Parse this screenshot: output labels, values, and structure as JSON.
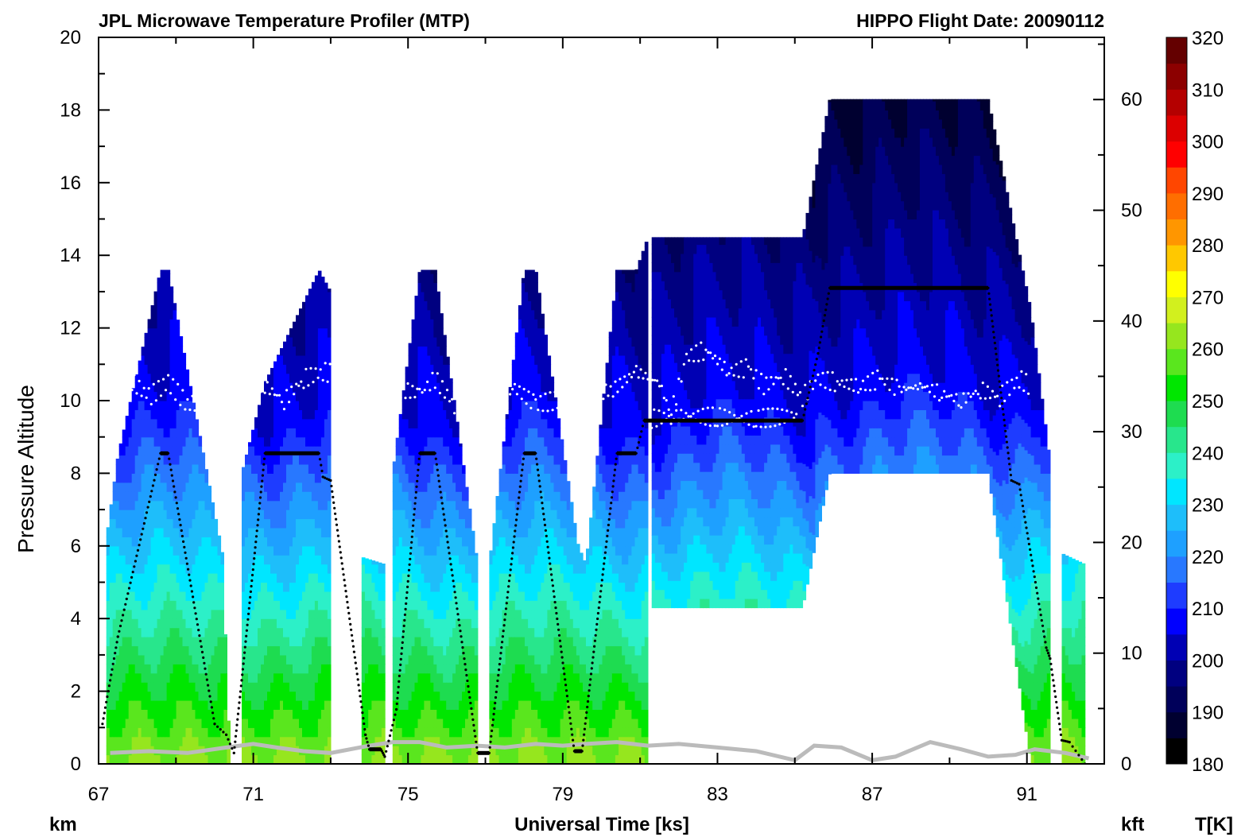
{
  "title_left": "JPL Microwave Temperature Profiler (MTP)",
  "title_right": "HIPPO  Flight Date: 20090112",
  "xlabel": "Universal Time [ks]",
  "ylabel": "Pressure Altitude",
  "left_unit": "km",
  "right_unit": "kft",
  "colorbar_unit": "T[K]",
  "chart_data": {
    "type": "heatmap",
    "x_range": [
      67,
      93
    ],
    "x_ticks": [
      67,
      71,
      75,
      79,
      83,
      87,
      91
    ],
    "x_tick_labels": [
      "67",
      "71",
      "75",
      "79",
      "83",
      "87",
      "91"
    ],
    "y_left_range": [
      0,
      20
    ],
    "y_left_ticks": [
      0,
      2,
      4,
      6,
      8,
      10,
      12,
      14,
      16,
      18,
      20
    ],
    "y_left_tick_labels": [
      "0",
      "2",
      "4",
      "6",
      "8",
      "10",
      "12",
      "14",
      "16",
      "18",
      "20"
    ],
    "y_right_ticks": [
      0,
      10,
      20,
      30,
      40,
      50,
      60
    ],
    "y_right_tick_labels": [
      "0",
      "10",
      "20",
      "30",
      "40",
      "50",
      "60"
    ],
    "colorbar": {
      "min": 180,
      "max": 320,
      "step": 5,
      "tick_labels": [
        "180",
        "190",
        "200",
        "210",
        "220",
        "230",
        "240",
        "250",
        "260",
        "270",
        "280",
        "290",
        "300",
        "310",
        "320"
      ],
      "colors": [
        "#000000",
        "#000030",
        "#00005a",
        "#000080",
        "#0000b4",
        "#0000ff",
        "#1e3cff",
        "#2878ff",
        "#1ea0ff",
        "#1ebefa",
        "#00e6ff",
        "#2cf0c8",
        "#28e68c",
        "#1edc50",
        "#00e600",
        "#5ae61e",
        "#96e61e",
        "#d2f01e",
        "#ffff00",
        "#ffc800",
        "#ff9600",
        "#ff6e00",
        "#ff4600",
        "#ff0000",
        "#dc0000",
        "#b40000",
        "#8c0000",
        "#640000"
      ]
    },
    "flight_altitude_km": [
      [
        67.1,
        1.1
      ],
      [
        67.5,
        3.5
      ],
      [
        68.6,
        8.55
      ],
      [
        68.8,
        8.55
      ],
      [
        70.0,
        1.1
      ],
      [
        70.3,
        0.8
      ],
      [
        70.5,
        0.3
      ],
      [
        70.7,
        2.3
      ],
      [
        71.3,
        8.55
      ],
      [
        72.7,
        8.55
      ],
      [
        72.8,
        7.9
      ],
      [
        73.0,
        7.8
      ],
      [
        73.9,
        0.8
      ],
      [
        74.0,
        0.4
      ],
      [
        74.3,
        0.4
      ],
      [
        74.4,
        0.2
      ],
      [
        74.7,
        1.5
      ],
      [
        75.3,
        8.55
      ],
      [
        75.7,
        8.55
      ],
      [
        76.8,
        0.3
      ],
      [
        77.1,
        0.3
      ],
      [
        78.0,
        8.55
      ],
      [
        78.3,
        8.55
      ],
      [
        79.3,
        0.35
      ],
      [
        79.5,
        0.35
      ],
      [
        80.4,
        8.55
      ],
      [
        80.9,
        8.55
      ],
      [
        81.1,
        9.45
      ],
      [
        85.2,
        9.45
      ],
      [
        85.6,
        11.3
      ],
      [
        85.9,
        13.1
      ],
      [
        90.0,
        13.1
      ],
      [
        90.6,
        7.8
      ],
      [
        90.8,
        7.7
      ],
      [
        91.5,
        3.2
      ],
      [
        91.6,
        2.9
      ],
      [
        91.9,
        0.65
      ],
      [
        92.1,
        0.6
      ],
      [
        92.5,
        0.0
      ]
    ],
    "tropopause_km": [
      [
        67.3,
        10.2
      ],
      [
        67.8,
        10.6
      ],
      [
        68.3,
        10.1
      ],
      [
        68.8,
        10.5
      ],
      [
        69.3,
        9.9
      ],
      [
        71.3,
        10.4
      ],
      [
        71.8,
        10.0
      ],
      [
        72.3,
        10.6
      ],
      [
        72.8,
        10.8
      ],
      [
        75.3,
        10.2
      ],
      [
        75.7,
        10.6
      ],
      [
        76.2,
        9.9
      ],
      [
        77.7,
        10.4
      ],
      [
        78.3,
        9.9
      ],
      [
        80.3,
        10.3
      ],
      [
        80.9,
        10.8
      ],
      [
        81.5,
        10.5
      ],
      [
        81.8,
        9.6
      ],
      [
        82.2,
        11.2
      ],
      [
        82.7,
        11.4
      ],
      [
        83.3,
        10.8
      ],
      [
        83.8,
        10.9
      ],
      [
        84.2,
        10.4
      ],
      [
        84.7,
        10.7
      ],
      [
        85.2,
        10.1
      ],
      [
        85.6,
        10.6
      ],
      [
        86.1,
        10.5
      ],
      [
        86.7,
        10.4
      ],
      [
        87.2,
        10.6
      ],
      [
        87.7,
        10.3
      ],
      [
        88.3,
        10.4
      ],
      [
        88.8,
        10.2
      ],
      [
        89.3,
        10.0
      ],
      [
        89.8,
        10.3
      ],
      [
        90.3,
        10.1
      ],
      [
        90.8,
        10.6
      ],
      [
        91.1,
        10.4
      ]
    ],
    "tropopause_low_km": [
      [
        81.3,
        9.5
      ],
      [
        82.0,
        9.6
      ],
      [
        83.0,
        9.55
      ],
      [
        84.0,
        9.5
      ],
      [
        85.1,
        9.6
      ]
    ],
    "ground_km": [
      [
        67.3,
        0.3
      ],
      [
        68.3,
        0.35
      ],
      [
        69.3,
        0.3
      ],
      [
        70.3,
        0.45
      ],
      [
        71.0,
        0.55
      ],
      [
        71.6,
        0.45
      ],
      [
        72.3,
        0.35
      ],
      [
        73.0,
        0.3
      ],
      [
        74.0,
        0.5
      ],
      [
        74.6,
        0.6
      ],
      [
        75.3,
        0.6
      ],
      [
        76.0,
        0.45
      ],
      [
        76.8,
        0.5
      ],
      [
        77.5,
        0.45
      ],
      [
        78.3,
        0.55
      ],
      [
        79.0,
        0.5
      ],
      [
        79.6,
        0.55
      ],
      [
        80.4,
        0.6
      ],
      [
        81.2,
        0.5
      ],
      [
        82.0,
        0.55
      ],
      [
        83.0,
        0.45
      ],
      [
        84.0,
        0.35
      ],
      [
        85.0,
        0.1
      ],
      [
        85.5,
        0.5
      ],
      [
        86.2,
        0.45
      ],
      [
        87.0,
        0.1
      ],
      [
        87.6,
        0.2
      ],
      [
        88.5,
        0.6
      ],
      [
        89.3,
        0.4
      ],
      [
        90.0,
        0.2
      ],
      [
        90.7,
        0.25
      ],
      [
        91.2,
        0.4
      ],
      [
        92.0,
        0.3
      ],
      [
        92.6,
        0.15
      ]
    ],
    "curtain_segments": [
      {
        "x": [
          67.2,
          67.5,
          68.6,
          68.8,
          70.2,
          70.4
        ],
        "top_km": [
          6.2,
          8.5,
          13.6,
          13.6,
          5.8,
          0.0
        ]
      },
      {
        "x": [
          70.7,
          71.3,
          72.7,
          73.0
        ],
        "top_km": [
          8.0,
          10.5,
          13.6,
          13.0
        ]
      },
      {
        "x": [
          73.8,
          74.4
        ],
        "top_km": [
          5.7,
          5.5
        ]
      },
      {
        "x": [
          74.6,
          75.3,
          75.7,
          76.6,
          76.8
        ],
        "top_km": [
          8.0,
          13.6,
          13.6,
          7.0,
          5.5
        ]
      },
      {
        "x": [
          77.1,
          78.0,
          78.3,
          79.4,
          79.6
        ],
        "top_km": [
          5.5,
          13.6,
          13.6,
          6.0,
          5.5
        ]
      },
      {
        "x": [
          79.6,
          80.4,
          80.9,
          81.2
        ],
        "top_km": [
          5.5,
          13.6,
          13.6,
          14.5
        ]
      },
      {
        "x": [
          81.3,
          85.2
        ],
        "top_km": [
          14.5,
          14.5
        ],
        "bottom_km": [
          4.3,
          4.3
        ]
      },
      {
        "x": [
          85.2,
          85.9,
          90.0,
          91.1
        ],
        "top_km": [
          14.5,
          18.3,
          18.3,
          12.5
        ],
        "bottom_km": [
          4.3,
          8.0,
          8.0,
          0.0
        ]
      },
      {
        "x": [
          91.1,
          91.6
        ],
        "top_km": [
          12.5,
          8.3
        ]
      },
      {
        "x": [
          91.9,
          92.5
        ],
        "top_km": [
          5.8,
          5.5
        ]
      }
    ]
  }
}
